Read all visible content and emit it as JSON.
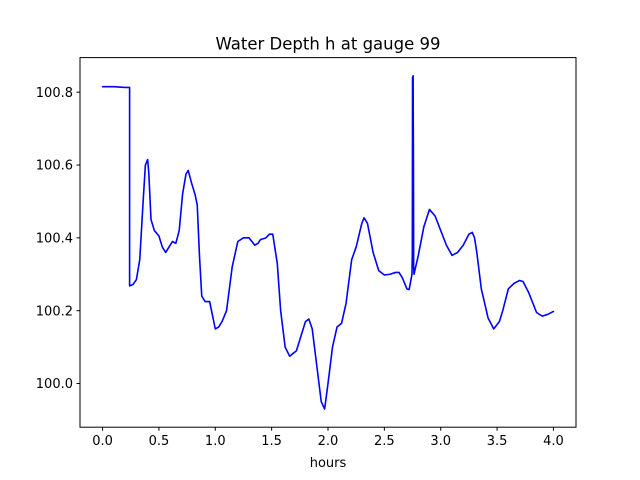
{
  "chart_data": {
    "type": "line",
    "title": "Water Depth h at gauge 99",
    "xlabel": "hours",
    "ylabel": "",
    "xlim": [
      -0.2,
      4.2
    ],
    "ylim": [
      99.88,
      100.895
    ],
    "xticks": [
      0.0,
      0.5,
      1.0,
      1.5,
      2.0,
      2.5,
      3.0,
      3.5,
      4.0
    ],
    "xtick_labels": [
      "0.0",
      "0.5",
      "1.0",
      "1.5",
      "2.0",
      "2.5",
      "3.0",
      "3.5",
      "4.0"
    ],
    "yticks": [
      100.0,
      100.2,
      100.4,
      100.6,
      100.8
    ],
    "ytick_labels": [
      "100.0",
      "100.2",
      "100.4",
      "100.6",
      "100.8"
    ],
    "grid": false,
    "legend": "none",
    "series": [
      {
        "color": "#0000ff",
        "x": [
          0.0,
          0.1,
          0.2,
          0.24,
          0.24,
          0.27,
          0.3,
          0.33,
          0.36,
          0.38,
          0.4,
          0.41,
          0.43,
          0.46,
          0.5,
          0.53,
          0.56,
          0.59,
          0.62,
          0.65,
          0.68,
          0.71,
          0.74,
          0.76,
          0.79,
          0.82,
          0.84,
          0.86,
          0.88,
          0.91,
          0.95,
          0.98,
          1.0,
          1.03,
          1.06,
          1.1,
          1.15,
          1.2,
          1.25,
          1.3,
          1.35,
          1.38,
          1.4,
          1.45,
          1.48,
          1.51,
          1.55,
          1.58,
          1.62,
          1.66,
          1.72,
          1.76,
          1.8,
          1.83,
          1.86,
          1.9,
          1.94,
          1.97,
          2.0,
          2.04,
          2.08,
          2.12,
          2.16,
          2.21,
          2.25,
          2.3,
          2.32,
          2.35,
          2.4,
          2.45,
          2.5,
          2.55,
          2.6,
          2.63,
          2.66,
          2.7,
          2.72,
          2.745,
          2.748,
          2.75,
          2.755,
          2.758,
          2.76,
          2.763,
          2.77,
          2.8,
          2.85,
          2.9,
          2.95,
          3.0,
          3.05,
          3.1,
          3.15,
          3.2,
          3.25,
          3.28,
          3.3,
          3.32,
          3.36,
          3.42,
          3.47,
          3.52,
          3.55,
          3.6,
          3.65,
          3.7,
          3.73,
          3.78,
          3.85,
          3.9,
          3.95,
          4.0
        ],
        "y": [
          100.815,
          100.815,
          100.813,
          100.813,
          100.268,
          100.272,
          100.285,
          100.34,
          100.5,
          100.6,
          100.615,
          100.58,
          100.45,
          100.42,
          100.405,
          100.375,
          100.36,
          100.375,
          100.39,
          100.385,
          100.42,
          100.52,
          100.575,
          100.585,
          100.55,
          100.52,
          100.49,
          100.35,
          100.24,
          100.225,
          100.225,
          100.18,
          100.15,
          100.155,
          100.17,
          100.2,
          100.32,
          100.39,
          100.4,
          100.4,
          100.38,
          100.385,
          100.395,
          100.4,
          100.41,
          100.41,
          100.33,
          100.2,
          100.1,
          100.075,
          100.09,
          100.13,
          100.17,
          100.177,
          100.15,
          100.05,
          99.95,
          99.93,
          100.0,
          100.1,
          100.155,
          100.165,
          100.22,
          100.34,
          100.375,
          100.44,
          100.455,
          100.44,
          100.36,
          100.31,
          100.298,
          100.3,
          100.305,
          100.305,
          100.29,
          100.26,
          100.258,
          100.3,
          100.36,
          100.84,
          100.845,
          100.6,
          100.32,
          100.3,
          100.31,
          100.35,
          100.43,
          100.478,
          100.46,
          100.42,
          100.38,
          100.352,
          100.36,
          100.38,
          100.41,
          100.415,
          100.4,
          100.36,
          100.26,
          100.18,
          100.15,
          100.17,
          100.2,
          100.26,
          100.275,
          100.283,
          100.28,
          100.25,
          100.195,
          100.185,
          100.19,
          100.198
        ]
      }
    ]
  }
}
